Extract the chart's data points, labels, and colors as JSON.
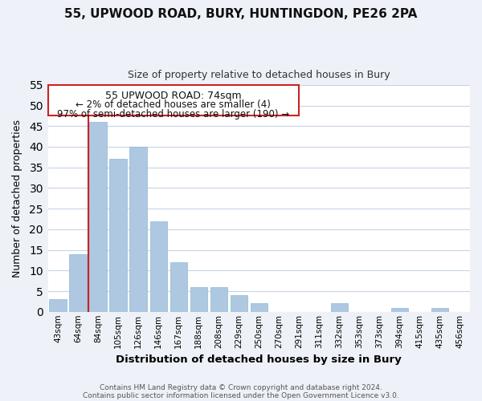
{
  "title1": "55, UPWOOD ROAD, BURY, HUNTINGDON, PE26 2PA",
  "title2": "Size of property relative to detached houses in Bury",
  "xlabel": "Distribution of detached houses by size in Bury",
  "ylabel": "Number of detached properties",
  "bar_labels": [
    "43sqm",
    "64sqm",
    "84sqm",
    "105sqm",
    "126sqm",
    "146sqm",
    "167sqm",
    "188sqm",
    "208sqm",
    "229sqm",
    "250sqm",
    "270sqm",
    "291sqm",
    "311sqm",
    "332sqm",
    "353sqm",
    "373sqm",
    "394sqm",
    "415sqm",
    "435sqm",
    "456sqm"
  ],
  "bar_values": [
    3,
    14,
    46,
    37,
    40,
    22,
    12,
    6,
    6,
    4,
    2,
    0,
    0,
    0,
    2,
    0,
    0,
    1,
    0,
    1,
    0
  ],
  "bar_color": "#adc8e0",
  "highlight_bar_index": 2,
  "highlight_color": "#cc2222",
  "ylim": [
    0,
    55
  ],
  "yticks": [
    0,
    5,
    10,
    15,
    20,
    25,
    30,
    35,
    40,
    45,
    50,
    55
  ],
  "annotation_title": "55 UPWOOD ROAD: 74sqm",
  "annotation_line1": "← 2% of detached houses are smaller (4)",
  "annotation_line2": "97% of semi-detached houses are larger (190) →",
  "footer1": "Contains HM Land Registry data © Crown copyright and database right 2024.",
  "footer2": "Contains public sector information licensed under the Open Government Licence v3.0.",
  "bg_color": "#eef2f8",
  "plot_bg_color": "#ffffff",
  "grid_color": "#c8d4e4"
}
